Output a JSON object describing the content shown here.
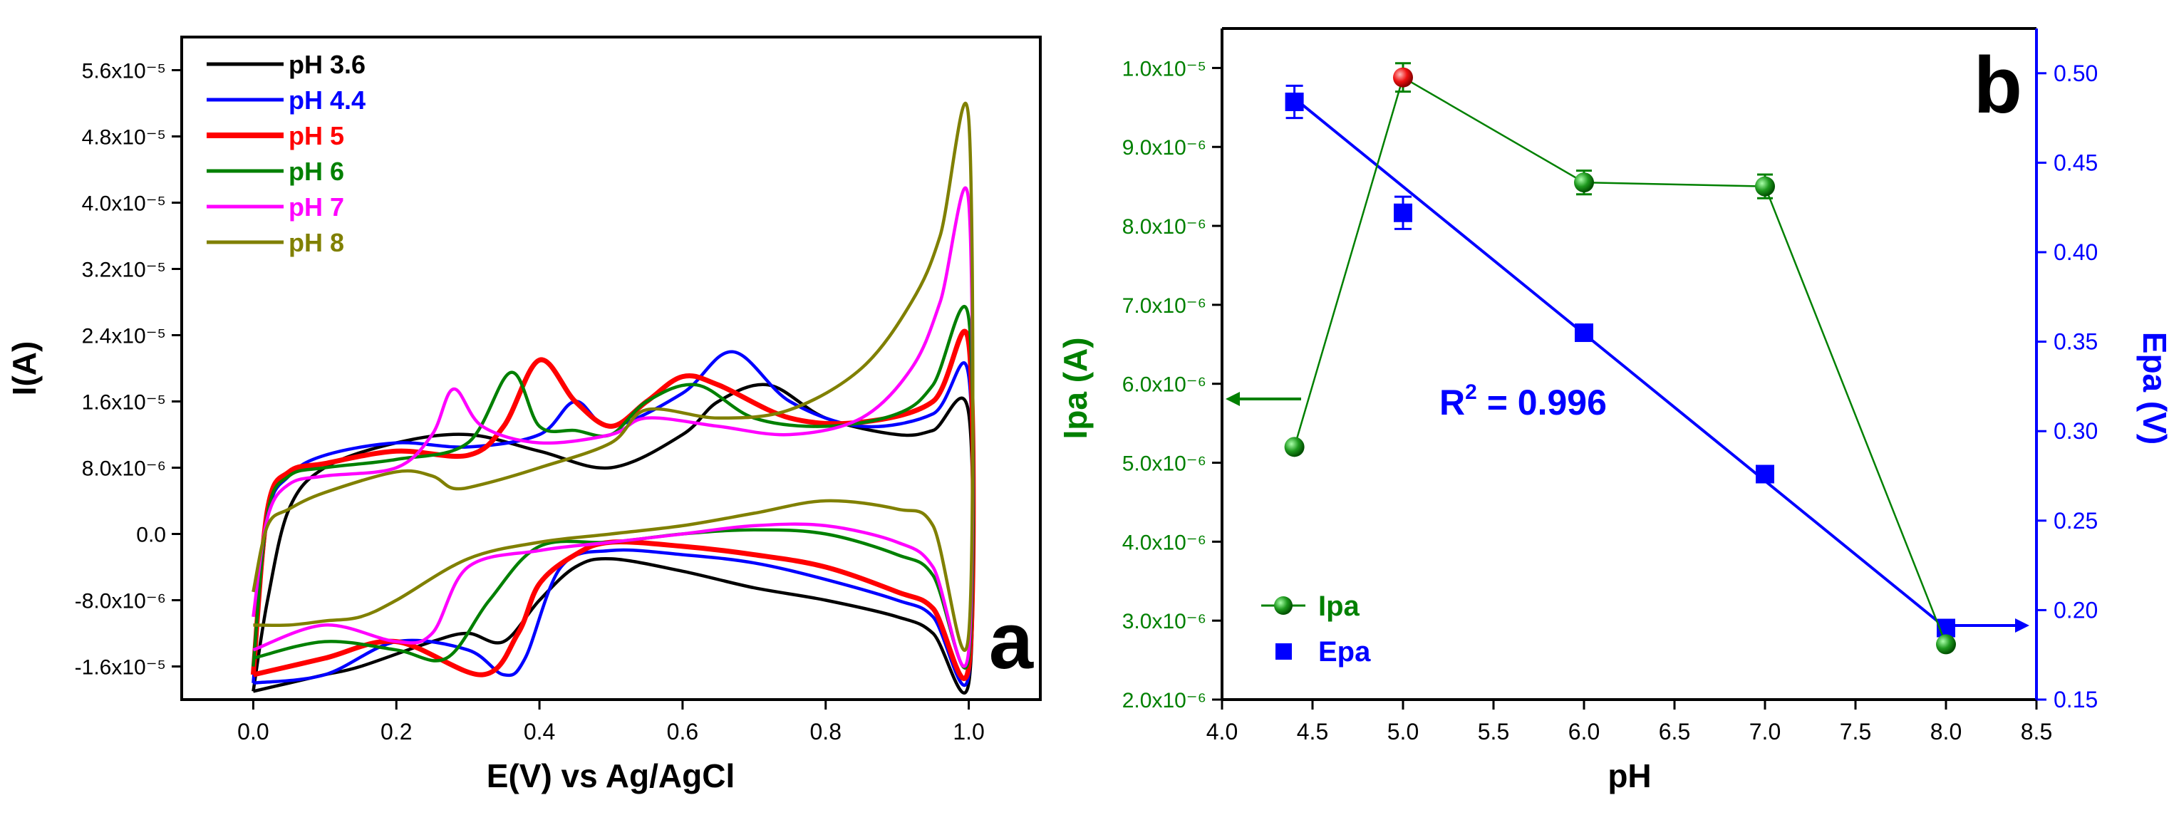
{
  "colors": {
    "axis": "#000000",
    "right_axis": "#0000ff",
    "left_axis_b": "#008000",
    "pH_3_6": "#000000",
    "pH_4_4": "#0000ff",
    "pH_5": "#ff0000",
    "pH_6": "#008000",
    "pH_7": "#ff00ff",
    "pH_8": "#808000"
  },
  "chart_data": [
    {
      "panel_label": "a",
      "type": "line",
      "xlabel": "E(V) vs Ag/AgCl",
      "ylabel": "I(A)",
      "xlim": [
        -0.1,
        1.1
      ],
      "ylim": [
        -2e-05,
        6e-05
      ],
      "x_ticks": [
        "0.0",
        "0.2",
        "0.4",
        "0.6",
        "0.8",
        "1.0"
      ],
      "y_ticks": [
        "-1.6x10⁻⁵",
        "-8.0x10⁻⁶",
        "0.0",
        "8.0x10⁻⁶",
        "1.6x10⁻⁵",
        "2.4x10⁻⁵",
        "3.2x10⁻⁵",
        "4.0x10⁻⁵",
        "4.8x10⁻⁵",
        "5.6x10⁻⁵"
      ],
      "y_tick_values": [
        -1.6e-05,
        -8e-06,
        0,
        8e-06,
        1.6e-05,
        2.4e-05,
        3.2e-05,
        4e-05,
        4.8e-05,
        5.6e-05
      ],
      "legend_position": "top-left",
      "series": [
        {
          "name": "pH 3.6",
          "color": "#000000",
          "x": [
            0.0,
            0.02,
            0.05,
            0.1,
            0.2,
            0.3,
            0.4,
            0.5,
            0.6,
            0.65,
            0.72,
            0.8,
            0.9,
            0.95,
            1.0,
            1.0,
            0.95,
            0.9,
            0.8,
            0.7,
            0.6,
            0.5,
            0.45,
            0.4,
            0.35,
            0.3,
            0.25,
            0.15,
            0.1,
            0.05,
            0.0
          ],
          "y": [
            -1.9e-05,
            -8e-06,
            3e-06,
            8e-06,
            1.1e-05,
            1.2e-05,
            1e-05,
            8e-06,
            1.2e-05,
            1.6e-05,
            1.8e-05,
            1.4e-05,
            1.2e-05,
            1.25e-05,
            1.45e-05,
            -1.8e-05,
            -1.2e-05,
            -1e-05,
            -8e-06,
            -6.5e-06,
            -4.5e-06,
            -3e-06,
            -4e-06,
            -8e-06,
            -1.3e-05,
            -1.2e-05,
            -1.3e-05,
            -1.6e-05,
            -1.7e-05,
            -1.8e-05,
            -1.9e-05
          ]
        },
        {
          "name": "pH 4.4",
          "color": "#0000ff",
          "x": [
            0.0,
            0.02,
            0.05,
            0.1,
            0.2,
            0.3,
            0.4,
            0.45,
            0.5,
            0.6,
            0.67,
            0.75,
            0.85,
            0.95,
            1.0,
            1.0,
            0.95,
            0.9,
            0.8,
            0.7,
            0.6,
            0.5,
            0.43,
            0.38,
            0.35,
            0.3,
            0.2,
            0.1,
            0.0
          ],
          "y": [
            -1.8e-05,
            2e-06,
            7e-06,
            9.5e-06,
            1.1e-05,
            1.05e-05,
            1.2e-05,
            1.6e-05,
            1.3e-05,
            1.7e-05,
            2.2e-05,
            1.6e-05,
            1.3e-05,
            1.45e-05,
            1.9e-05,
            -1.7e-05,
            -1e-05,
            -8e-06,
            -5.5e-06,
            -3.5e-06,
            -2.5e-06,
            -2e-06,
            -4e-06,
            -1.5e-05,
            -1.7e-05,
            -1.4e-05,
            -1.3e-05,
            -1.7e-05,
            -1.8e-05
          ]
        },
        {
          "name": "pH 5",
          "color": "#ff0000",
          "x": [
            0.0,
            0.02,
            0.05,
            0.1,
            0.2,
            0.3,
            0.35,
            0.4,
            0.45,
            0.5,
            0.55,
            0.6,
            0.65,
            0.75,
            0.85,
            0.95,
            1.0,
            1.0,
            0.95,
            0.9,
            0.8,
            0.7,
            0.6,
            0.5,
            0.45,
            0.4,
            0.37,
            0.32,
            0.2,
            0.1,
            0.0
          ],
          "y": [
            -1.7e-05,
            3e-06,
            7.5e-06,
            8.5e-06,
            1e-05,
            9.5e-06,
            1.3e-05,
            2.1e-05,
            1.6e-05,
            1.3e-05,
            1.6e-05,
            1.9e-05,
            1.8e-05,
            1.4e-05,
            1.35e-05,
            1.6e-05,
            2.3e-05,
            -1.6e-05,
            -9e-06,
            -7e-06,
            -4e-06,
            -2.5e-06,
            -1.5e-06,
            -1e-06,
            -2.5e-06,
            -6e-06,
            -1.2e-05,
            -1.7e-05,
            -1.3e-05,
            -1.5e-05,
            -1.7e-05
          ]
        },
        {
          "name": "pH 6",
          "color": "#008000",
          "x": [
            0.0,
            0.02,
            0.05,
            0.1,
            0.2,
            0.3,
            0.36,
            0.4,
            0.45,
            0.5,
            0.55,
            0.62,
            0.7,
            0.8,
            0.9,
            0.95,
            1.0,
            1.0,
            0.95,
            0.9,
            0.8,
            0.7,
            0.6,
            0.5,
            0.4,
            0.33,
            0.27,
            0.2,
            0.1,
            0.0
          ],
          "y": [
            -1.6e-05,
            2.5e-06,
            7e-06,
            8e-06,
            9e-06,
            1.1e-05,
            1.95e-05,
            1.3e-05,
            1.25e-05,
            1.2e-05,
            1.6e-05,
            1.8e-05,
            1.4e-05,
            1.3e-05,
            1.45e-05,
            1.8e-05,
            2.6e-05,
            -1.5e-05,
            -5e-06,
            -2.5e-06,
            0.0,
            5e-07,
            0.0,
            -1e-06,
            -1.5e-06,
            -8e-06,
            -1.5e-05,
            -1.4e-05,
            -1.3e-05,
            -1.5e-05
          ]
        },
        {
          "name": "pH 7",
          "color": "#ff00ff",
          "x": [
            0.0,
            0.02,
            0.05,
            0.1,
            0.2,
            0.25,
            0.28,
            0.32,
            0.4,
            0.5,
            0.55,
            0.65,
            0.75,
            0.85,
            0.92,
            0.96,
            1.0,
            1.0,
            0.95,
            0.9,
            0.8,
            0.7,
            0.6,
            0.5,
            0.4,
            0.3,
            0.25,
            0.2,
            0.1,
            0.0
          ],
          "y": [
            -1e-05,
            2e-06,
            6e-06,
            7e-06,
            8e-06,
            1.2e-05,
            1.75e-05,
            1.3e-05,
            1.1e-05,
            1.2e-05,
            1.4e-05,
            1.3e-05,
            1.2e-05,
            1.4e-05,
            2e-05,
            2.8e-05,
            4e-05,
            -1.4e-05,
            -4e-06,
            -1e-06,
            1e-06,
            1e-06,
            0.0,
            -1e-06,
            -2e-06,
            -4e-06,
            -1.2e-05,
            -1.3e-05,
            -1.1e-05,
            -1.4e-05
          ]
        },
        {
          "name": "pH 8",
          "color": "#808000",
          "x": [
            0.0,
            0.02,
            0.05,
            0.1,
            0.2,
            0.25,
            0.28,
            0.32,
            0.4,
            0.5,
            0.55,
            0.65,
            0.75,
            0.85,
            0.92,
            0.96,
            1.0,
            1.0,
            0.95,
            0.9,
            0.8,
            0.7,
            0.6,
            0.5,
            0.4,
            0.3,
            0.2,
            0.15,
            0.1,
            0.05,
            0.0
          ],
          "y": [
            -7e-06,
            1e-06,
            3e-06,
            5e-06,
            7.5e-06,
            7e-06,
            5.5e-06,
            6e-06,
            8e-06,
            1.1e-05,
            1.5e-05,
            1.4e-05,
            1.5e-05,
            2e-05,
            2.8e-05,
            3.6e-05,
            5e-05,
            -1.2e-05,
            1e-06,
            3e-06,
            4e-06,
            2.5e-06,
            1e-06,
            0.0,
            -1e-06,
            -3e-06,
            -8e-06,
            -1e-05,
            -1.05e-05,
            -1.1e-05,
            -1.1e-05
          ]
        }
      ]
    },
    {
      "panel_label": "b",
      "type": "scatter",
      "xlabel": "pH",
      "ylabel": "Ipa (A)",
      "y2label": "Epa (V)",
      "xlim": [
        4.0,
        8.5
      ],
      "ylim": [
        2e-06,
        1.05e-05
      ],
      "y2lim": [
        0.15,
        0.525
      ],
      "x_ticks": [
        "4.0",
        "4.5",
        "5.0",
        "5.5",
        "6.0",
        "6.5",
        "7.0",
        "7.5",
        "8.0",
        "8.5"
      ],
      "x_tick_values": [
        4.0,
        4.5,
        5.0,
        5.5,
        6.0,
        6.5,
        7.0,
        7.5,
        8.0,
        8.5
      ],
      "y_ticks": [
        "2.0x10⁻⁶",
        "3.0x10⁻⁶",
        "4.0x10⁻⁶",
        "5.0x10⁻⁶",
        "6.0x10⁻⁶",
        "7.0x10⁻⁶",
        "8.0x10⁻⁶",
        "9.0x10⁻⁶",
        "1.0x10⁻⁵"
      ],
      "y_tick_values": [
        2e-06,
        3e-06,
        4e-06,
        5e-06,
        6e-06,
        7e-06,
        8e-06,
        9e-06,
        1e-05
      ],
      "y2_ticks": [
        "0.15",
        "0.20",
        "0.25",
        "0.30",
        "0.35",
        "0.40",
        "0.45",
        "0.50"
      ],
      "y2_tick_values": [
        0.15,
        0.2,
        0.25,
        0.3,
        0.35,
        0.4,
        0.45,
        0.5
      ],
      "legend_position": "bottom-left",
      "annotation": "R",
      "annotation_sup": "2",
      "annotation_rest": " = 0.996",
      "series": [
        {
          "name": "Ipa",
          "axis": "left",
          "color": "#008000",
          "highlight_color": "#ff0000",
          "highlight_index": 1,
          "x": [
            4.4,
            5.0,
            6.0,
            7.0,
            8.0
          ],
          "y": [
            5.2e-06,
            9.88e-06,
            8.55e-06,
            8.5e-06,
            2.7e-06
          ],
          "err": [
            0.0,
            1.8e-07,
            1.5e-07,
            1.5e-07,
            0.0
          ]
        },
        {
          "name": "Epa",
          "axis": "right",
          "color": "#0000ff",
          "x": [
            4.4,
            5.0,
            6.0,
            7.0,
            8.0
          ],
          "y": [
            0.484,
            0.422,
            0.355,
            0.276,
            0.19
          ],
          "err": [
            0.009,
            0.009,
            0.004,
            0.003,
            0.002
          ],
          "fit_line": {
            "x": [
              4.4,
              8.0
            ],
            "y": [
              0.486,
              0.19
            ]
          }
        }
      ]
    }
  ]
}
